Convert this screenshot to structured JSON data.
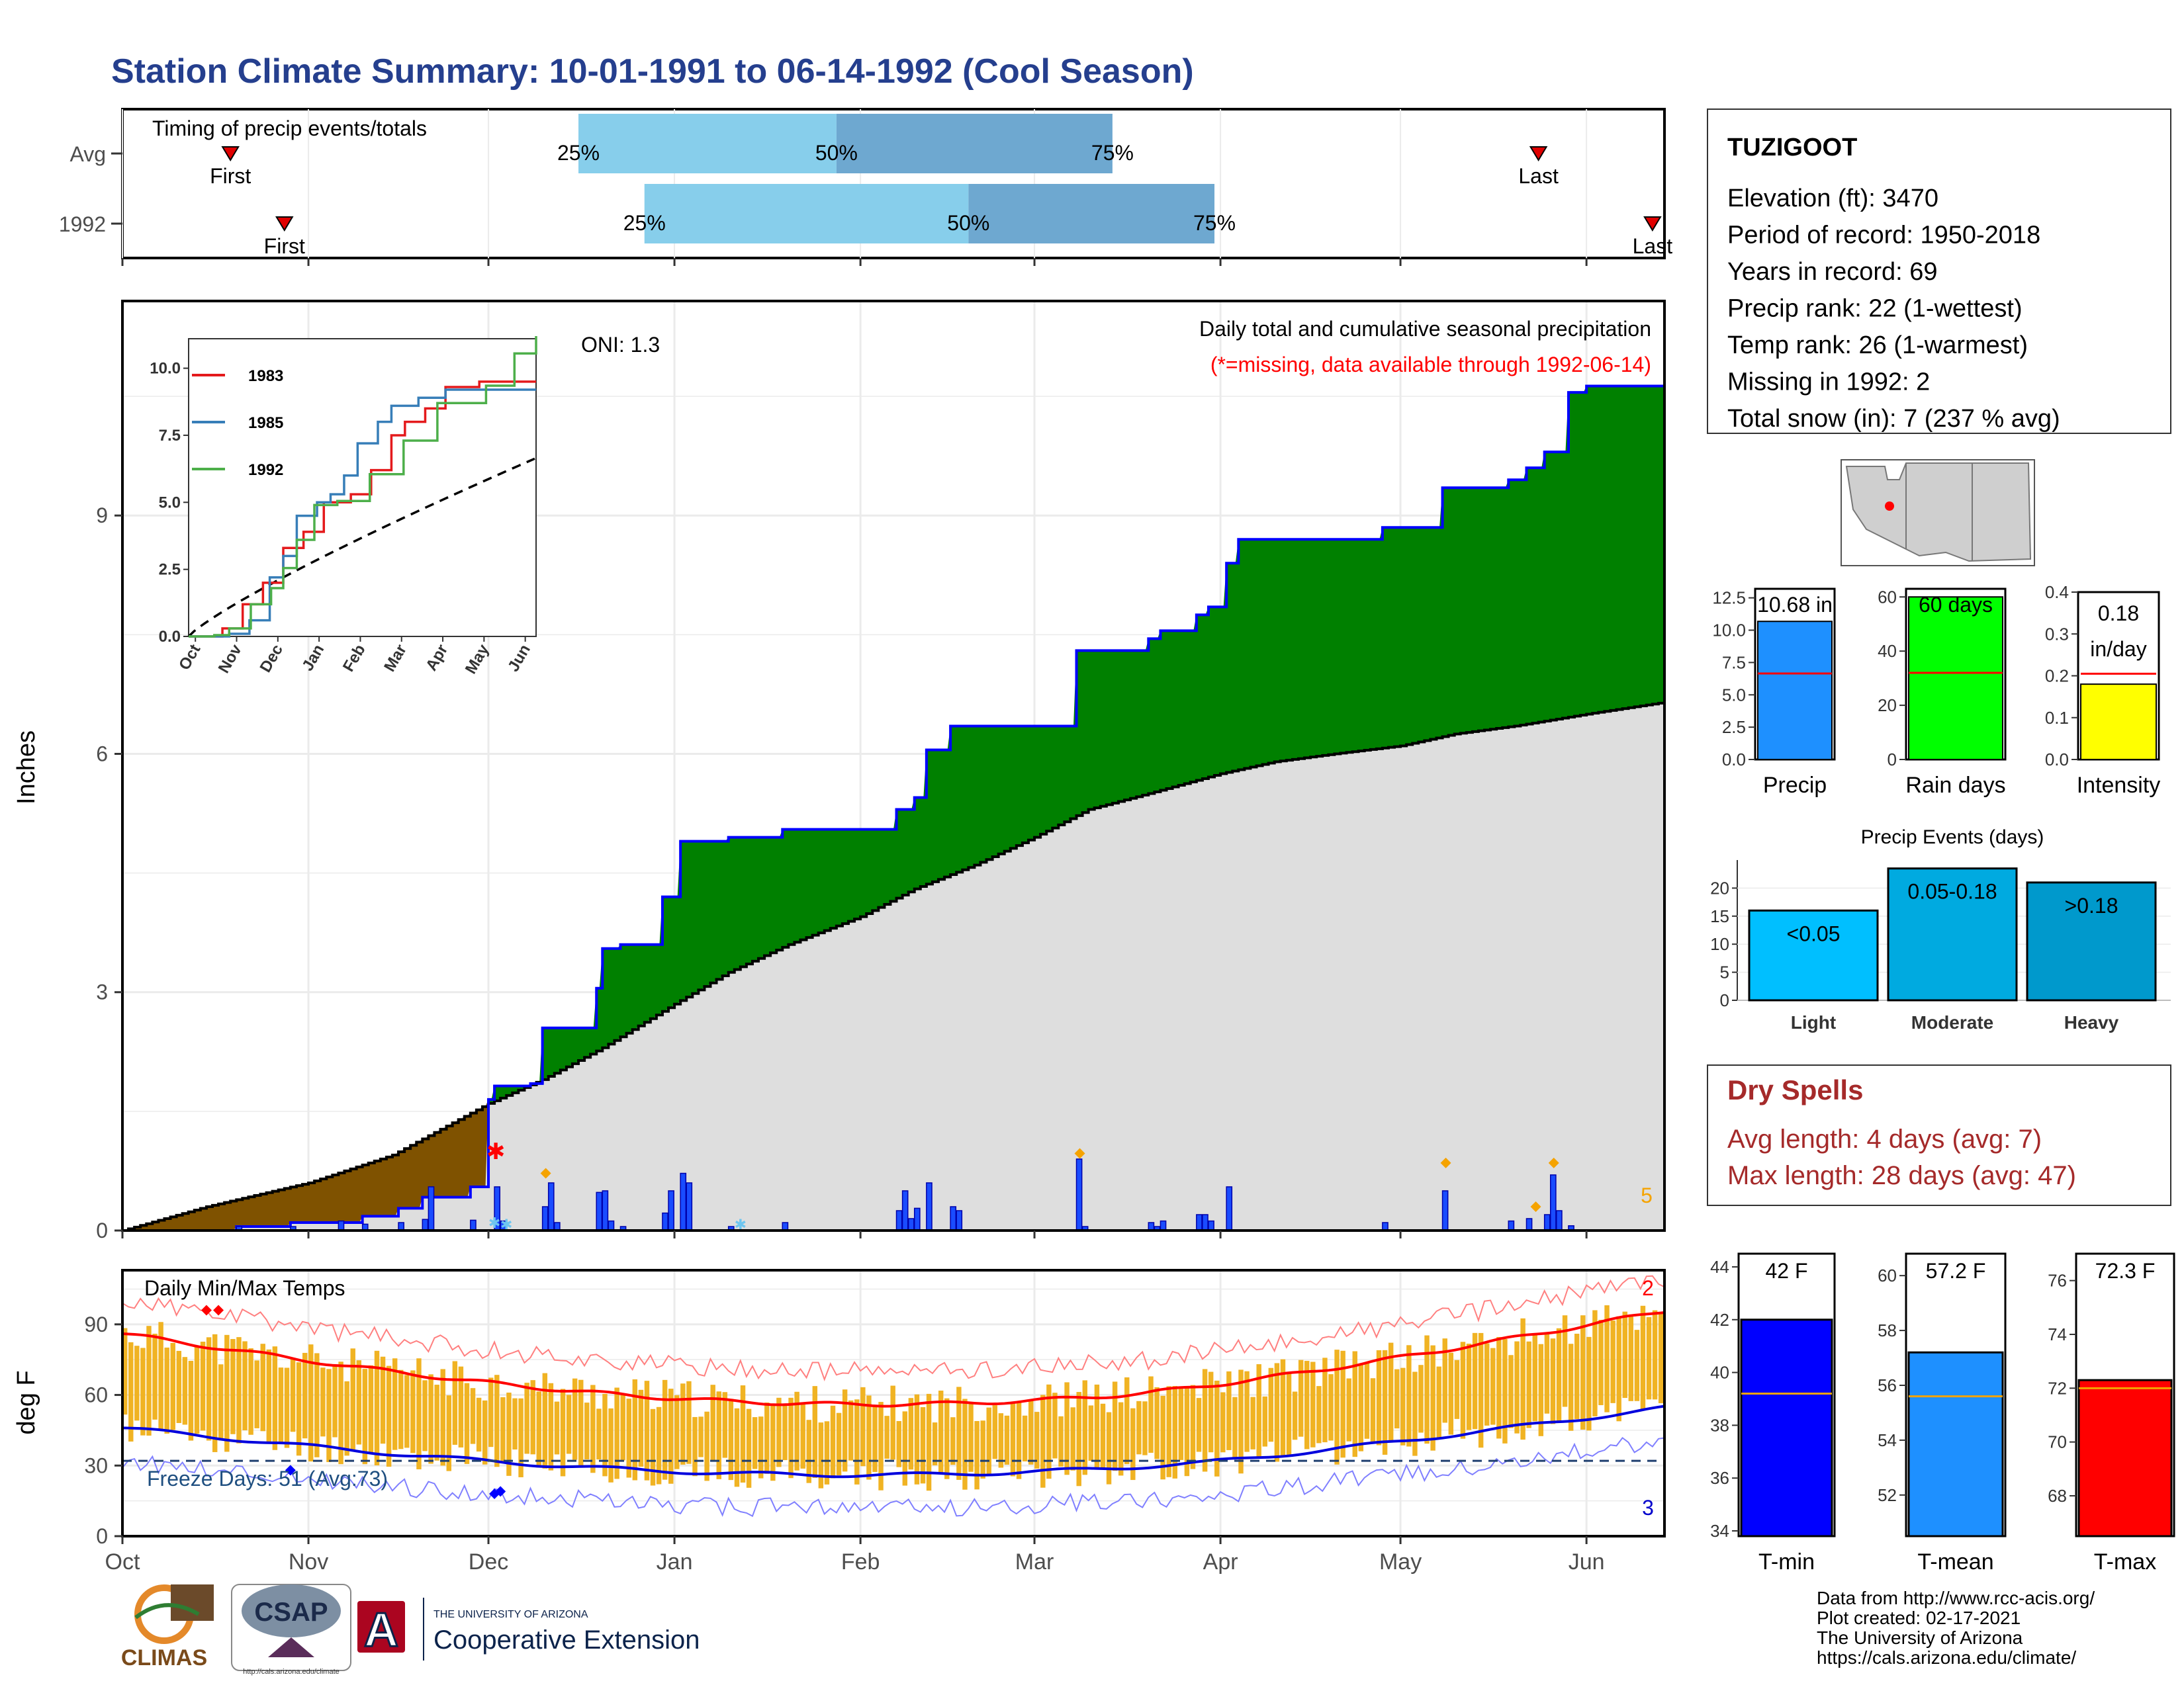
{
  "title": "Station Climate Summary: 10-01-1991 to 06-14-1992 (Cool Season)",
  "colors": {
    "title": "#253f8e",
    "cum_fill": "#008000",
    "cum_line": "#0000ff",
    "deficit_fill": "#7f5200",
    "avg_fill": "#dedede",
    "bar": "#1a4cff",
    "orange": "#f5a300",
    "temp_bar": "#f0b323",
    "tmax": "#ff0000",
    "tmin": "#0000dd",
    "q_light": "#87ceeb",
    "q_dark": "#6ea8d0",
    "dry_title": "#a52a2a",
    "dry_text": "#a52a2a"
  },
  "timing": {
    "title": "Timing of precip events/totals",
    "rows": [
      {
        "label": "Avg",
        "first": "Oct 19",
        "q25": "Dec 15",
        "q50": "Jan 27",
        "q75": "Mar 16",
        "last": "May 24"
      },
      {
        "label": "1992",
        "first": "Oct 28",
        "q25": "Dec 26",
        "q50": "Feb 18",
        "q75": "Apr 2",
        "last": "Jun 12"
      }
    ],
    "labels": {
      "first": "First",
      "last": "Last",
      "q25": "25%",
      "q50": "50%",
      "q75": "75%"
    }
  },
  "precip_panel": {
    "ylabel": "Inches",
    "oni": "ONI: 1.3",
    "caption": "Daily total and cumulative seasonal precipitation",
    "missing_note": "(*=missing, data available through 1992-06-14)",
    "corner_count": "5",
    "yticks": [
      "0",
      "3",
      "6",
      "9"
    ]
  },
  "inset": {
    "xticks": [
      "Oct",
      "Nov",
      "Dec",
      "Jan",
      "Feb",
      "Mar",
      "Apr",
      "May",
      "Jun"
    ],
    "yticks": [
      "0.0",
      "2.5",
      "5.0",
      "7.5",
      "10.0"
    ],
    "legend": [
      "1983",
      "1985",
      "1992"
    ]
  },
  "temp_panel": {
    "ylabel": "deg F",
    "title": "Daily Min/Max Temps",
    "freeze": "Freeze Days: 51 (Avg:73)",
    "count_top": "2",
    "count_bottom": "3",
    "yticks": [
      "0",
      "30",
      "60",
      "90"
    ]
  },
  "month_axis": [
    "Oct",
    "Nov",
    "Dec",
    "Jan",
    "Feb",
    "Mar",
    "Apr",
    "May",
    "Jun"
  ],
  "station": {
    "name": "TUZIGOOT",
    "lines": [
      "Elevation (ft): 3470",
      "Period of record: 1950-2018",
      "Years in record: 69",
      "Precip rank: 22 (1-wettest)",
      "Temp rank: 26 (1-warmest)",
      "Missing in 1992: 2",
      "Total snow (in): 7 (237 % avg)"
    ]
  },
  "stat_bars": [
    {
      "label": "Precip",
      "value_text": "10.68 in",
      "value": 10.68,
      "avg": 6.65,
      "yticks": [
        "0.0",
        "2.5",
        "5.0",
        "7.5",
        "10.0",
        "12.5"
      ],
      "color": "#1e90ff"
    },
    {
      "label": "Rain days",
      "value_text": "60 days",
      "value": 60,
      "avg": 32,
      "yticks": [
        "0",
        "20",
        "40",
        "60"
      ],
      "color": "#00ff00"
    },
    {
      "label": "Intensity",
      "value_text": "0.18",
      "value_text2": "in/day",
      "value": 0.18,
      "avg": 0.205,
      "yticks": [
        "0.0",
        "0.1",
        "0.2",
        "0.3",
        "0.4"
      ],
      "color": "#ffff00"
    }
  ],
  "precip_events": {
    "title": "Precip Events (days)",
    "yticks": [
      "0",
      "5",
      "10",
      "15",
      "20"
    ],
    "bars": [
      {
        "label": "Light",
        "range": "<0.05",
        "value": 16,
        "color": "#00bfff"
      },
      {
        "label": "Moderate",
        "range": "0.05-0.18",
        "value": 23.5,
        "color": "#00aae0"
      },
      {
        "label": "Heavy",
        "range": ">0.18",
        "value": 21,
        "color": "#0099cc"
      }
    ]
  },
  "dry_spells": {
    "title": "Dry Spells",
    "avg": "Avg length: 4 days (avg: 7)",
    "max": "Max length: 28 days (avg: 47)"
  },
  "temp_bars": [
    {
      "label": "T-min",
      "value_text": "42 F",
      "value": 42,
      "avg": 39.2,
      "yticks": [
        "34",
        "36",
        "38",
        "40",
        "42",
        "44"
      ],
      "color": "#0000ff"
    },
    {
      "label": "T-mean",
      "value_text": "57.2 F",
      "value": 57.2,
      "avg": 55.6,
      "yticks": [
        "52",
        "54",
        "56",
        "58",
        "60"
      ],
      "color": "#1e90ff"
    },
    {
      "label": "T-max",
      "value_text": "72.3 F",
      "value": 72.3,
      "avg": 72.0,
      "yticks": [
        "68",
        "70",
        "72",
        "74",
        "76"
      ],
      "color": "#ff0000"
    }
  ],
  "footer": {
    "lines": [
      "Data from http://www.rcc-acis.org/",
      "Plot created: 02-17-2021",
      "The University of Arizona",
      "https://cals.arizona.edu/climate/"
    ],
    "logo_climas": "CLIMAS",
    "logo_csap": "CSAP",
    "logo_csap_url": "http://cals.arizona.edu/climate",
    "ua_small": "THE UNIVERSITY OF ARIZONA",
    "ua_big": "Cooperative Extension",
    "ua_letter": "A"
  },
  "chart_data": {
    "type": "area",
    "title": "Daily total and cumulative seasonal precipitation",
    "ylabel": "Inches",
    "ylim": [
      0,
      11.5
    ],
    "x": [
      "Oct 1",
      "Oct 15",
      "Nov 1",
      "Nov 15",
      "Dec 1",
      "Dec 10",
      "Dec 20",
      "Jan 1",
      "Jan 10",
      "Jan 20",
      "Feb 1",
      "Feb 10",
      "Feb 20",
      "Mar 1",
      "Mar 10",
      "Mar 20",
      "Apr 1",
      "Apr 10",
      "Apr 20",
      "May 1",
      "May 10",
      "May 20",
      "Jun 1",
      "Jun 14"
    ],
    "series": [
      {
        "name": "1992",
        "values": [
          0,
          0,
          0.1,
          0.45,
          1.8,
          2.4,
          2.55,
          3.6,
          4.85,
          4.9,
          5.0,
          5.0,
          6.3,
          6.35,
          7.3,
          7.5,
          8.6,
          8.7,
          8.7,
          8.8,
          9.4,
          9.5,
          10.6,
          10.68
        ]
      },
      {
        "name": "Average",
        "values": [
          0,
          0.3,
          0.6,
          0.95,
          1.6,
          1.9,
          2.3,
          2.85,
          3.25,
          3.6,
          3.95,
          4.3,
          4.6,
          4.95,
          5.3,
          5.5,
          5.75,
          5.9,
          6.0,
          6.1,
          6.25,
          6.35,
          6.5,
          6.65
        ]
      }
    ]
  }
}
